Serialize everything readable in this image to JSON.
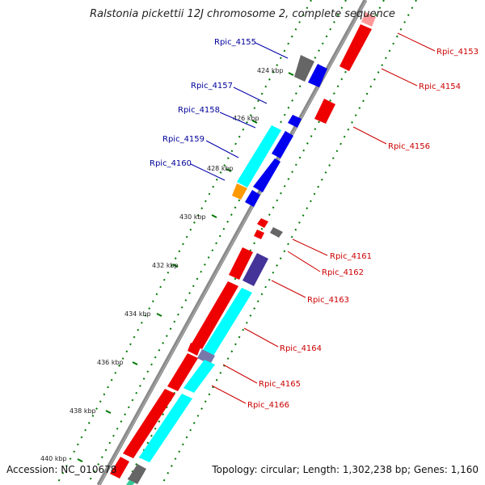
{
  "title": "Ralstonia pickettii 12J chromosome 2, complete sequence",
  "accession": "Accession: NC_010678",
  "topology": "Topology: circular; Length: 1,302,238 bp; Genes: 1,160",
  "ticks": [
    "424 kbp",
    "426 kbp",
    "428 kbp",
    "430 kbp",
    "432 kbp",
    "434 kbp",
    "436 kbp",
    "438 kbp",
    "440 kbp"
  ],
  "genes_left": [
    "Rpic_4155",
    "Rpic_4157",
    "Rpic_4158",
    "Rpic_4159",
    "Rpic_4160"
  ],
  "genes_right": [
    "Rpic_4153",
    "Rpic_4154",
    "Rpic_4156",
    "Rpic_4161",
    "Rpic_4162",
    "Rpic_4163",
    "Rpic_4164",
    "Rpic_4165",
    "Rpic_4166"
  ],
  "colors": {
    "forward": "#ff0000",
    "reverse": "#0000ee",
    "cyan": "#00ffff",
    "gray": "#666666",
    "purple": "#443399",
    "orange": "#ff9900",
    "tick_green": "#007700",
    "label_blue": "#000099",
    "label_red": "#cc0000"
  }
}
